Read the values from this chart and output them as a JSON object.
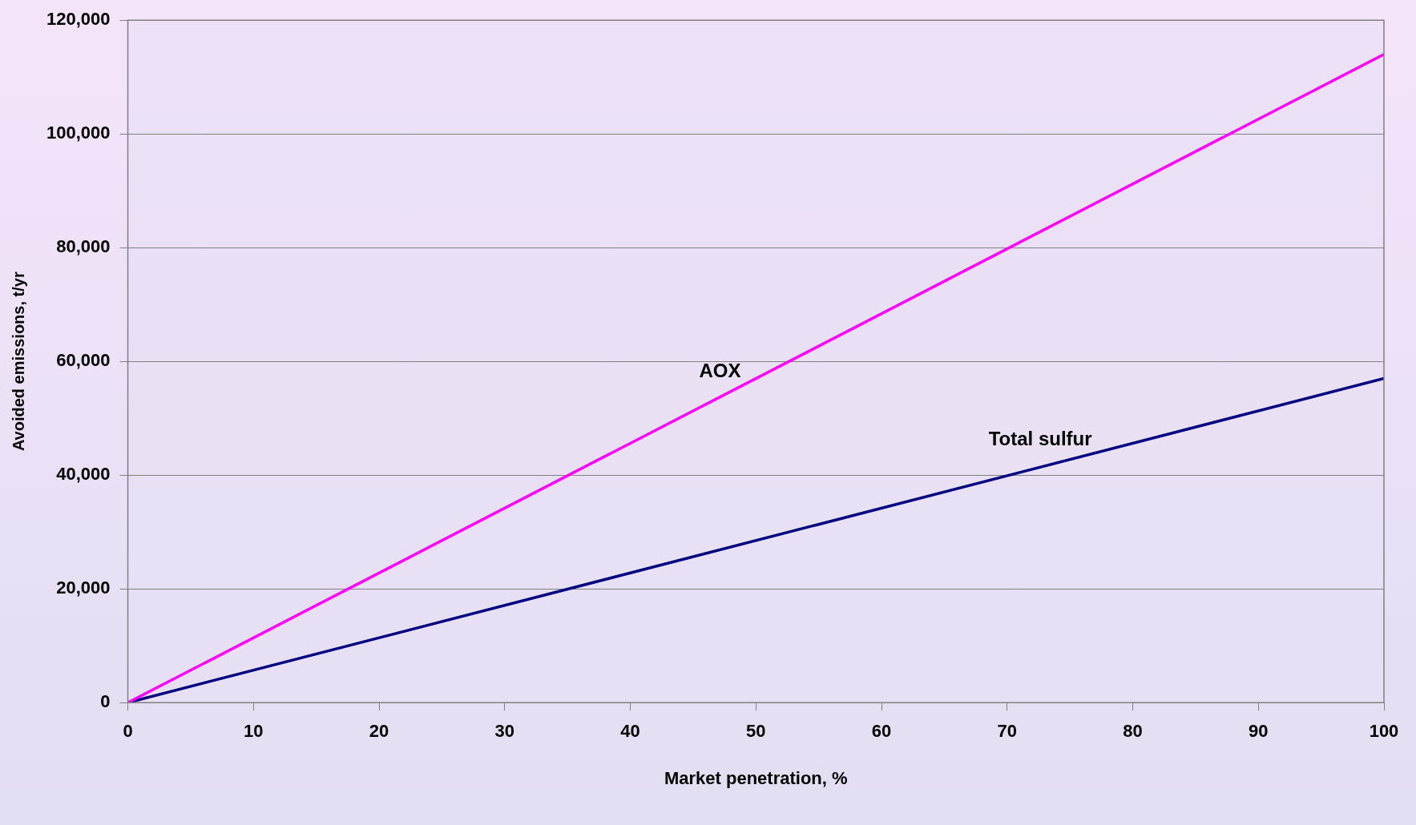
{
  "chart_data": {
    "type": "line",
    "xlabel": "Market penetration, %",
    "ylabel": "Avoided emissions, t/yr",
    "x": [
      0,
      100
    ],
    "series": [
      {
        "name": "AOX",
        "color": "#ff00ff",
        "values": [
          0,
          114000
        ]
      },
      {
        "name": "Total sulfur",
        "color": "#000080",
        "values": [
          0,
          57000
        ]
      }
    ],
    "xlim": [
      0,
      100
    ],
    "xticks": [
      0,
      10,
      20,
      30,
      40,
      50,
      60,
      70,
      80,
      90,
      100
    ],
    "ylim": [
      0,
      120000
    ],
    "yticks": [
      0,
      {
        "value": 20000,
        "label": "20,000"
      },
      {
        "value": 40000,
        "label": "40,000"
      },
      {
        "value": 60000,
        "label": "60,000"
      },
      {
        "value": 80000,
        "label": "80,000"
      },
      {
        "value": 100000,
        "label": "100,000"
      },
      {
        "value": 120000,
        "label": "120,000"
      }
    ],
    "grid": "y",
    "marker": "none",
    "legend": false
  }
}
